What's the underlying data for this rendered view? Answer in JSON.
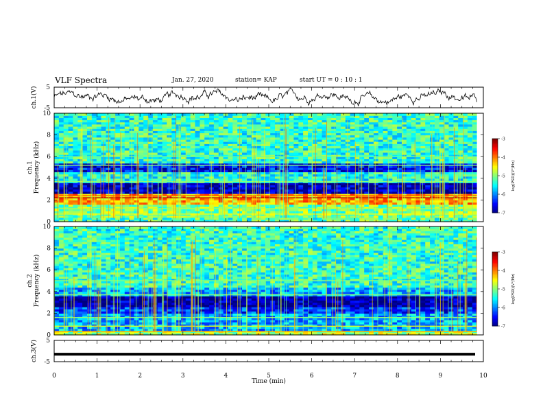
{
  "header": {
    "title": "VLF Spectra",
    "date": "Jan. 27, 2020",
    "station": "station= KAP",
    "start": "start  UT =   0 : 10 : 1"
  },
  "chart_data": [
    {
      "type": "line",
      "panel": "ch1-waveform",
      "ylabel": "ch.1(V)",
      "ylim": [
        -5,
        5
      ],
      "y_ticks": [
        "5",
        "-5"
      ],
      "xlim": [
        0,
        10
      ],
      "series": [
        {
          "values_note": "noisy waveform between about -4 and 4 V"
        }
      ]
    },
    {
      "type": "heatmap",
      "panel": "ch1-spectrogram",
      "ylabel": "ch.1\nFrequency (kHz)",
      "ylim": [
        0,
        10
      ],
      "y_ticks": [
        "0",
        "2",
        "4",
        "6",
        "8",
        "10"
      ],
      "xlim": [
        0,
        10
      ],
      "colorbar": {
        "label": "log(PSD)(V²/Hz)",
        "ticks": [
          "-3",
          "-4",
          "-5",
          "-6",
          "-7"
        ],
        "range": [
          -7,
          -3
        ]
      },
      "bands": [
        {
          "from": 0.0,
          "to": 0.4,
          "level": -5.2
        },
        {
          "from": 0.4,
          "to": 1.6,
          "level": -5.0
        },
        {
          "from": 1.6,
          "to": 2.6,
          "level": -4.2
        },
        {
          "from": 2.6,
          "to": 3.6,
          "level": -6.8
        },
        {
          "from": 3.6,
          "to": 4.6,
          "level": -5.4
        },
        {
          "from": 4.6,
          "to": 5.4,
          "level": -6.5
        },
        {
          "from": 5.4,
          "to": 10.0,
          "level": -5.3
        }
      ],
      "lines": [
        {
          "freq": 2.2,
          "level": -3.2
        },
        {
          "freq": 2.4,
          "level": -3.8
        },
        {
          "freq": 0.7,
          "level": -4.5
        },
        {
          "freq": 1.2,
          "level": -4.8
        },
        {
          "freq": 3.7,
          "level": -5.0
        },
        {
          "freq": 5.2,
          "level": -5.0
        },
        {
          "freq": 6.0,
          "level": -5.1
        }
      ]
    },
    {
      "type": "heatmap",
      "panel": "ch2-spectrogram",
      "ylabel": "ch.2\nFrequency (kHz)",
      "ylim": [
        0,
        10
      ],
      "y_ticks": [
        "0",
        "2",
        "4",
        "6",
        "8",
        "10"
      ],
      "xlim": [
        0,
        10
      ],
      "colorbar": {
        "label": "log(PSD)(V²/Hz)",
        "ticks": [
          "-3",
          "-4",
          "-5",
          "-6",
          "-7"
        ],
        "range": [
          -7,
          -3
        ]
      },
      "bands": [
        {
          "from": 0.0,
          "to": 0.5,
          "level": -4.8
        },
        {
          "from": 0.5,
          "to": 2.0,
          "level": -5.8
        },
        {
          "from": 2.0,
          "to": 2.6,
          "level": -6.3
        },
        {
          "from": 2.6,
          "to": 3.6,
          "level": -6.9
        },
        {
          "from": 3.6,
          "to": 4.4,
          "level": -5.8
        },
        {
          "from": 4.4,
          "to": 10.0,
          "level": -5.3
        }
      ],
      "lines": [
        {
          "freq": 0.3,
          "level": -4.2
        },
        {
          "freq": 0.8,
          "level": -4.6
        },
        {
          "freq": 1.6,
          "level": -5.0
        },
        {
          "freq": 3.7,
          "level": -5.0
        },
        {
          "freq": 5.0,
          "level": -5.0
        }
      ]
    },
    {
      "type": "line",
      "panel": "ch3-waveform",
      "ylabel": "ch.3(V)",
      "ylim": [
        -5,
        5
      ],
      "y_ticks": [
        "5",
        "-5"
      ],
      "xlim": [
        0,
        10
      ],
      "series": [
        {
          "constant": -1.5
        }
      ]
    }
  ],
  "x_axis": {
    "label": "Time  (min)",
    "ticks": [
      "0",
      "1",
      "2",
      "3",
      "4",
      "5",
      "6",
      "7",
      "8",
      "9",
      "10"
    ]
  },
  "colors": {
    "axis": "#000000",
    "waveform": "#000000"
  }
}
